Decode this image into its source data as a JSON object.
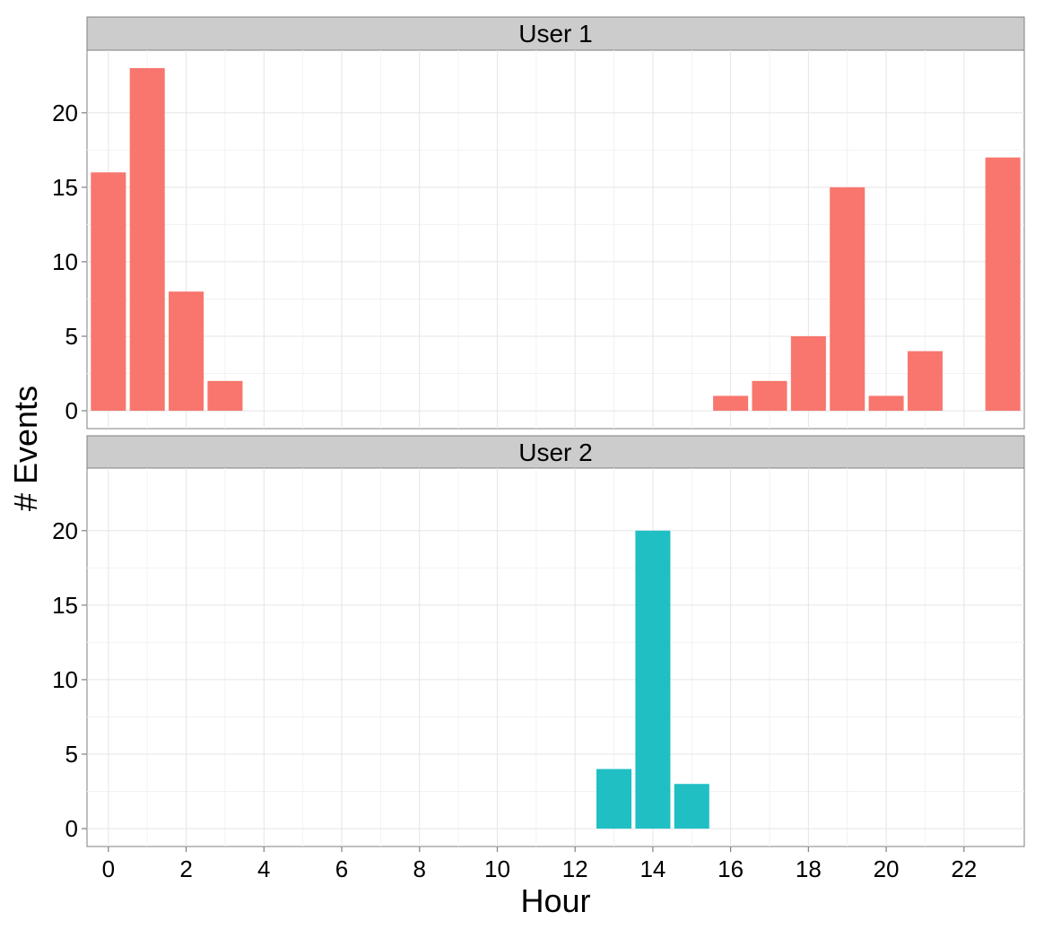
{
  "chart_data": {
    "type": "bar",
    "xlabel": "Hour",
    "ylabel": "# Events",
    "x_ticks": [
      0,
      2,
      4,
      6,
      8,
      10,
      12,
      14,
      16,
      18,
      20,
      22
    ],
    "y_ticks": [
      0,
      5,
      10,
      15,
      20
    ],
    "xlim": [
      -0.55,
      23.55
    ],
    "ylim": [
      -1.2,
      24.2
    ],
    "grid": true,
    "facets": [
      {
        "name": "User 1",
        "color": "#F8766D",
        "bars": [
          {
            "x": 0,
            "y": 16
          },
          {
            "x": 1,
            "y": 23
          },
          {
            "x": 2,
            "y": 8
          },
          {
            "x": 3,
            "y": 2
          },
          {
            "x": 16,
            "y": 1
          },
          {
            "x": 17,
            "y": 2
          },
          {
            "x": 18,
            "y": 5
          },
          {
            "x": 19,
            "y": 15
          },
          {
            "x": 20,
            "y": 1
          },
          {
            "x": 21,
            "y": 4
          },
          {
            "x": 23,
            "y": 17
          }
        ]
      },
      {
        "name": "User 2",
        "color": "#20BFC4",
        "bars": [
          {
            "x": 13,
            "y": 4
          },
          {
            "x": 14,
            "y": 20
          },
          {
            "x": 15,
            "y": 3
          }
        ]
      }
    ]
  }
}
